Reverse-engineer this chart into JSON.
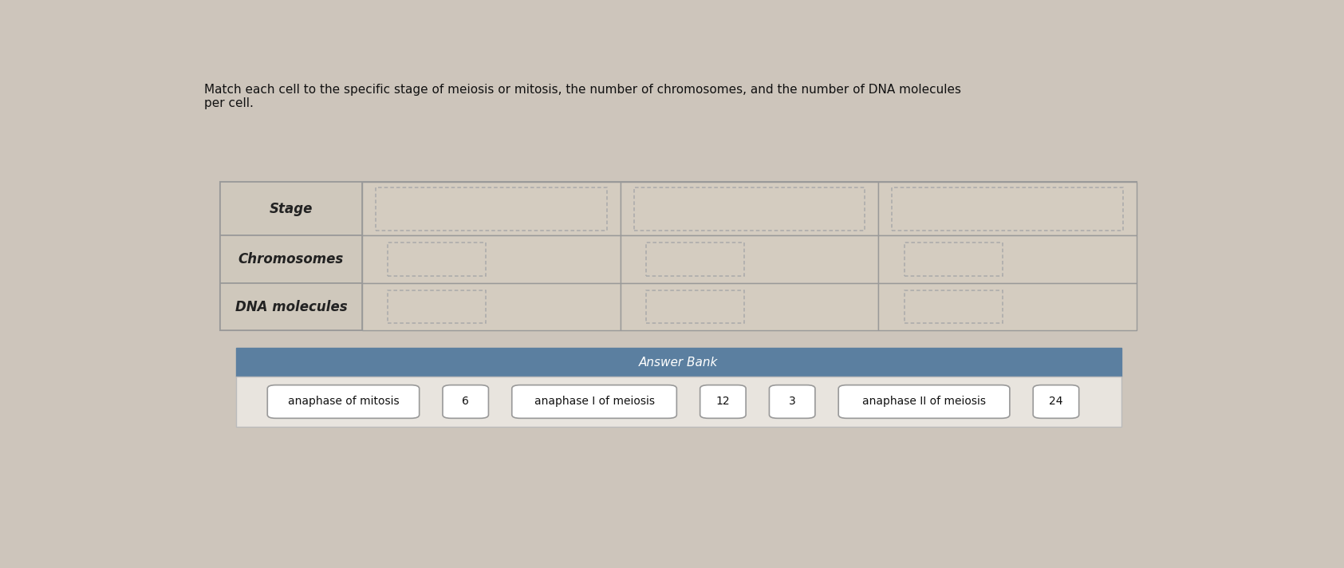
{
  "title_text": "Match each cell to the specific stage of meiosis or mitosis, the number of chromosomes, and the number of DNA molecules\nper cell.",
  "bg_color": "#cdc5bb",
  "table_bg": "#d8d0c4",
  "label_cell_bg": "#cfc8bc",
  "data_cell_bg": "#d4ccc0",
  "header_bg": "#ffffff",
  "row_labels": [
    "Stage",
    "Chromosomes",
    "DNA molecules"
  ],
  "num_data_cols": 3,
  "answer_bank_header": "Answer Bank",
  "answer_bank_bg": "#5b7fa0",
  "answer_bank_body_bg": "#e8e4de",
  "answer_items": [
    "anaphase of mitosis",
    "6",
    "anaphase I of meiosis",
    "12",
    "3",
    "anaphase II of meiosis",
    "24"
  ],
  "dashed_box_color": "#aaaaaa",
  "table_border_color": "#999999",
  "label_font_size": 12,
  "title_font_size": 11,
  "answer_font_size": 10
}
